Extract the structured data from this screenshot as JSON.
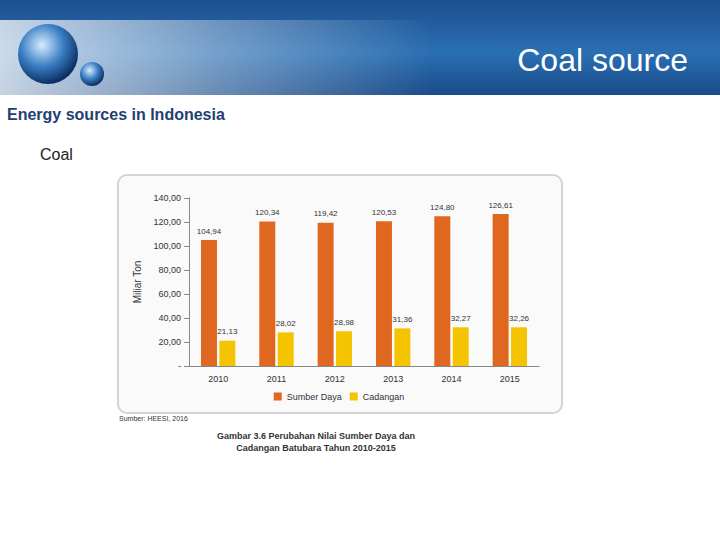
{
  "slide": {
    "header": "Coal source",
    "heading": "Energy sources in Indonesia",
    "subheading": "Coal"
  },
  "chart_data": {
    "type": "bar",
    "title": "Gambar 3.6 Perubahan Nilai Sumber Daya dan Cadangan Batubara Tahun 2010-2015",
    "annotations": [
      "Sumber: HEESI, 2016"
    ],
    "y_label": "Miliar Ton",
    "categories": [
      "2010",
      "2011",
      "2012",
      "2013",
      "2014",
      "2015"
    ],
    "series": [
      {
        "name": "Sumber Daya",
        "color": "#e0671f",
        "values": [
          104.94,
          120.34,
          119.42,
          120.53,
          124.8,
          126.61
        ],
        "value_labels": [
          "104,94",
          "120,34",
          "119,42",
          "120,53",
          "124,80",
          "126,61"
        ]
      },
      {
        "name": "Cadangan",
        "color": "#f5c400",
        "values": [
          21.13,
          28.02,
          28.98,
          31.36,
          32.27,
          32.26
        ],
        "value_labels": [
          "21,13",
          "28,02",
          "28,98",
          "31,36",
          "32,27",
          "32,26"
        ]
      }
    ],
    "ylim": [
      0,
      140
    ],
    "yticks": [
      {
        "value": 0,
        "label": "-"
      },
      {
        "value": 20,
        "label": "20,00"
      },
      {
        "value": 40,
        "label": "40,00"
      },
      {
        "value": 60,
        "label": "60,00"
      },
      {
        "value": 80,
        "label": "80,00"
      },
      {
        "value": 100,
        "label": "100,00"
      },
      {
        "value": 120,
        "label": "120,00"
      },
      {
        "value": 140,
        "label": "140,00"
      }
    ],
    "grid": false,
    "legend": "bottom",
    "data_labels": true
  }
}
